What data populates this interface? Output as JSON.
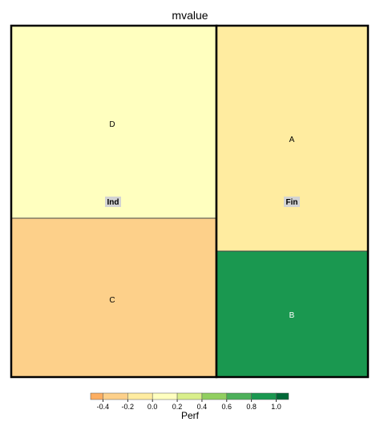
{
  "chart_data": {
    "type": "treemap",
    "title": "mvalue",
    "size_variable": "mvalue",
    "color_variable": "Perf",
    "groups": [
      {
        "name": "Ind",
        "leaves": [
          {
            "name": "D",
            "perf": 0.05
          },
          {
            "name": "C",
            "perf": -0.35
          }
        ]
      },
      {
        "name": "Fin",
        "leaves": [
          {
            "name": "A",
            "perf": -0.05
          },
          {
            "name": "B",
            "perf": 0.9
          }
        ]
      }
    ],
    "legend": {
      "title": "Perf",
      "position": "bottom",
      "ticks": [
        "-0.4",
        "-0.2",
        "0.0",
        "0.2",
        "0.4",
        "0.6",
        "0.8",
        "1.0"
      ],
      "bins": [
        {
          "from": -0.5,
          "to": -0.4,
          "color": "#fdae61"
        },
        {
          "from": -0.4,
          "to": -0.2,
          "color": "#fdd08a"
        },
        {
          "from": -0.2,
          "to": 0.0,
          "color": "#ffeca0"
        },
        {
          "from": 0.0,
          "to": 0.2,
          "color": "#ffffbf"
        },
        {
          "from": 0.2,
          "to": 0.4,
          "color": "#d9ef8b"
        },
        {
          "from": 0.4,
          "to": 0.6,
          "color": "#91cf60"
        },
        {
          "from": 0.6,
          "to": 0.8,
          "color": "#4db05a"
        },
        {
          "from": 0.8,
          "to": 1.0,
          "color": "#1a9850"
        },
        {
          "from": 1.0,
          "to": 1.1,
          "color": "#006837"
        }
      ]
    }
  }
}
